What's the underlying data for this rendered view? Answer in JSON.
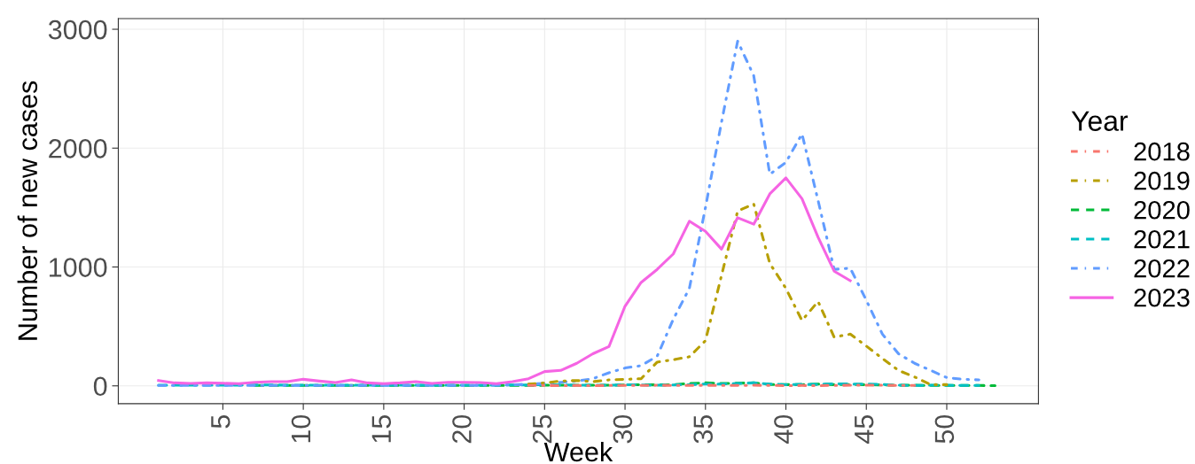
{
  "chart_data": {
    "type": "line",
    "xlabel": "Week",
    "ylabel": "Number of new cases",
    "legend_title": "Year",
    "xlim": [
      -1.5,
      55.7
    ],
    "xticks": [
      5,
      10,
      15,
      20,
      25,
      30,
      35,
      40,
      45,
      50
    ],
    "ylim": [
      -150,
      3090
    ],
    "yticks": [
      0,
      1000,
      2000,
      3000
    ],
    "grid": true,
    "legend": "right",
    "series": [
      {
        "name": "2018",
        "color": "#F8766D",
        "line_style": "dashdot",
        "x": [
          24,
          25,
          26,
          27,
          28,
          29,
          30,
          31,
          32,
          33,
          34,
          35,
          36,
          37,
          38,
          39,
          40,
          41,
          42,
          43,
          44,
          45,
          46,
          47,
          48
        ],
        "values": [
          4,
          3,
          2,
          3,
          2,
          3,
          4,
          3,
          5,
          4,
          3,
          5,
          4,
          3,
          5,
          4,
          2,
          3,
          2,
          4,
          5,
          6,
          5,
          4,
          3
        ]
      },
      {
        "name": "2019",
        "color": "#B79F00",
        "line_style": "dashdot",
        "x": [
          24,
          25,
          26,
          27,
          28,
          29,
          30,
          31,
          32,
          33,
          34,
          35,
          36,
          37,
          38,
          39,
          40,
          41,
          42,
          43,
          44,
          45,
          46,
          47,
          48,
          49,
          50
        ],
        "values": [
          15,
          25,
          40,
          45,
          35,
          50,
          55,
          60,
          200,
          220,
          245,
          380,
          930,
          1470,
          1530,
          1030,
          820,
          550,
          710,
          410,
          435,
          335,
          230,
          130,
          75,
          10,
          10
        ]
      },
      {
        "name": "2020",
        "color": "#00BA38",
        "line_style": "dashed",
        "x": [
          7,
          8,
          9,
          10,
          11,
          12,
          13,
          14,
          15,
          16,
          17,
          18,
          19,
          20,
          21,
          22,
          23,
          24,
          25,
          26,
          27,
          28,
          29,
          30,
          31,
          32,
          33,
          34,
          35,
          36,
          37,
          38,
          39,
          40,
          41,
          42,
          43,
          44,
          45,
          46,
          47,
          48,
          49,
          50,
          51,
          52,
          53
        ],
        "values": [
          3,
          3,
          3,
          3,
          3,
          3,
          3,
          3,
          3,
          3,
          3,
          3,
          3,
          3,
          3,
          3,
          3,
          3,
          5,
          5,
          5,
          5,
          5,
          8,
          10,
          8,
          10,
          20,
          25,
          20,
          22,
          25,
          12,
          10,
          10,
          15,
          10,
          12,
          10,
          8,
          5,
          5,
          3,
          3,
          3,
          3,
          2
        ]
      },
      {
        "name": "2021",
        "color": "#00BFC4",
        "line_style": "dashed",
        "x": [
          1,
          2,
          3,
          4,
          5,
          6,
          7,
          8,
          9,
          10,
          11,
          12,
          13,
          14,
          15,
          16,
          17,
          18,
          19,
          20,
          21,
          22,
          23,
          24,
          25,
          26,
          27,
          28,
          29,
          30,
          31,
          32,
          33,
          34,
          35,
          36,
          37,
          38,
          39,
          40,
          41,
          42,
          43,
          44,
          45,
          46,
          47,
          48,
          49,
          50,
          51,
          52
        ],
        "values": [
          5,
          5,
          5,
          5,
          5,
          5,
          8,
          8,
          5,
          5,
          5,
          5,
          5,
          5,
          5,
          5,
          5,
          5,
          5,
          5,
          5,
          5,
          8,
          8,
          10,
          8,
          5,
          5,
          5,
          10,
          8,
          5,
          8,
          10,
          15,
          15,
          20,
          25,
          15,
          10,
          12,
          12,
          18,
          15,
          15,
          12,
          5,
          3,
          5,
          5,
          3,
          3
        ]
      },
      {
        "name": "2022",
        "color": "#619CFF",
        "line_style": "dashdot",
        "x": [
          1,
          2,
          3,
          4,
          5,
          6,
          7,
          8,
          9,
          10,
          11,
          12,
          13,
          14,
          15,
          16,
          17,
          18,
          19,
          20,
          21,
          22,
          23,
          24,
          25,
          26,
          27,
          28,
          29,
          30,
          31,
          32,
          33,
          34,
          35,
          36,
          37,
          38,
          39,
          40,
          41,
          42,
          43,
          44,
          45,
          46,
          47,
          48,
          49,
          50,
          51,
          52
        ],
        "values": [
          3,
          3,
          3,
          3,
          3,
          3,
          3,
          3,
          3,
          3,
          3,
          3,
          3,
          3,
          3,
          3,
          3,
          3,
          3,
          3,
          5,
          5,
          8,
          15,
          20,
          30,
          40,
          60,
          110,
          150,
          170,
          250,
          560,
          820,
          1500,
          2220,
          2900,
          2610,
          1780,
          1880,
          2120,
          1560,
          980,
          990,
          720,
          435,
          270,
          190,
          130,
          70,
          55,
          50
        ]
      },
      {
        "name": "2023",
        "color": "#F564E3",
        "line_style": "solid",
        "x": [
          1,
          2,
          3,
          4,
          5,
          6,
          7,
          8,
          9,
          10,
          11,
          12,
          13,
          14,
          15,
          16,
          17,
          18,
          19,
          20,
          21,
          22,
          23,
          24,
          25,
          26,
          27,
          28,
          29,
          30,
          31,
          32,
          33,
          34,
          35,
          36,
          37,
          38,
          39,
          40,
          41,
          42,
          43,
          44
        ],
        "values": [
          45,
          25,
          20,
          25,
          22,
          18,
          30,
          35,
          35,
          55,
          40,
          28,
          50,
          25,
          18,
          25,
          35,
          20,
          30,
          30,
          28,
          18,
          35,
          60,
          120,
          130,
          190,
          270,
          330,
          670,
          870,
          980,
          1110,
          1385,
          1300,
          1150,
          1415,
          1360,
          1615,
          1750,
          1575,
          1250,
          965,
          885
        ]
      }
    ]
  }
}
